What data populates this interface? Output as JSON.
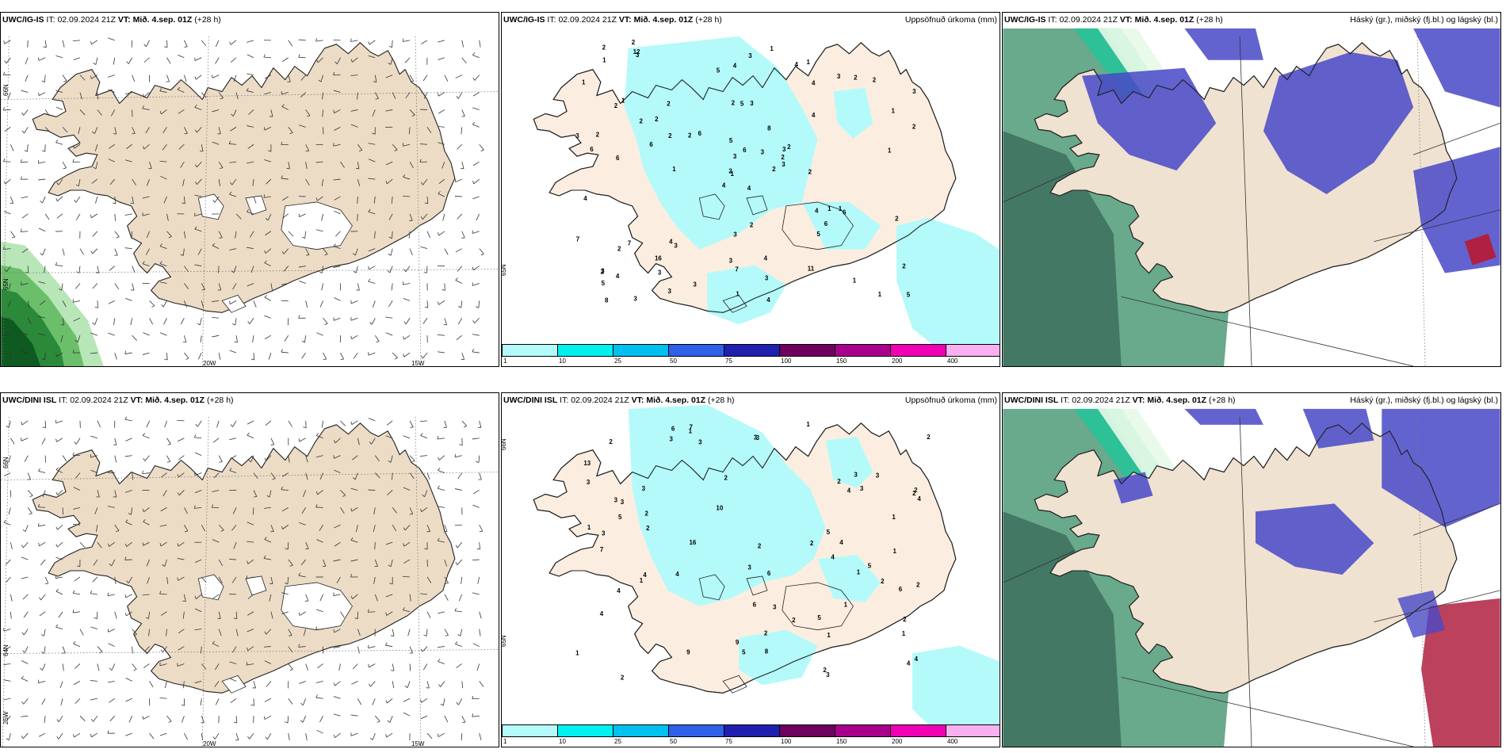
{
  "panels": [
    {
      "id": "ig-wind",
      "model": "UWC/IG-IS",
      "it_label": "IT:",
      "it": "02.09.2024 21Z",
      "vt_label": "VT:",
      "vt": "Mið. 4.sep. 01Z",
      "lead": "(+28 h)",
      "right_title": "",
      "lat_labels": [
        "66N",
        "65N",
        "64N"
      ],
      "lon_labels": [
        "20W",
        "15W",
        "25W"
      ]
    },
    {
      "id": "ig-precip",
      "model": "UWC/IG-IS",
      "it_label": "IT:",
      "it": "02.09.2024 21Z",
      "vt_label": "VT:",
      "vt": "Mið. 4.sep. 01Z",
      "lead": "(+28 h)",
      "right_title": "Uppsöfnuð úrkoma (mm)",
      "lat_labels": [
        "65N"
      ],
      "lon_labels": []
    },
    {
      "id": "ig-cloud",
      "model": "UWC/IG-IS",
      "it_label": "IT:",
      "it": "02.09.2024 21Z",
      "vt_label": "VT:",
      "vt": "Mið. 4.sep. 01Z",
      "lead": "(+28 h)",
      "right_title": "Háský (gr.), miðský (fj.bl.) og lágský (bl.)",
      "lat_labels": [],
      "lon_labels": []
    },
    {
      "id": "dini-wind",
      "model": "UWC/DINI ISL",
      "it_label": "IT:",
      "it": "02.09.2024 21Z",
      "vt_label": "VT:",
      "vt": "Mið. 4.sep. 01Z",
      "lead": "(+28 h)",
      "right_title": "",
      "lat_labels": [
        "66N",
        "64N",
        "25W"
      ],
      "lon_labels": [
        "20W",
        "15W"
      ]
    },
    {
      "id": "dini-precip",
      "model": "UWC/DINI ISL",
      "it_label": "IT:",
      "it": "02.09.2024 21Z",
      "vt_label": "VT:",
      "vt": "Mið. 4.sep. 01Z",
      "lead": "(+28 h)",
      "right_title": "Uppsöfnuð úrkoma (mm)",
      "lat_labels": [
        "66N",
        "65N"
      ],
      "lon_labels": []
    },
    {
      "id": "dini-cloud",
      "model": "UWC/DINI ISL",
      "it_label": "IT:",
      "it": "02.09.2024 21Z",
      "vt_label": "VT:",
      "vt": "Mið. 4.sep. 01Z",
      "lead": "(+28 h)",
      "right_title": "Háský (gr.), miðský (fj.bl.) og lágský (bl.)",
      "lat_labels": [],
      "lon_labels": []
    }
  ],
  "colorbar": {
    "ticks": [
      "1",
      "10",
      "25",
      "50",
      "75",
      "100",
      "150",
      "200",
      "400"
    ],
    "colors": [
      "#b4fafa",
      "#00f0f0",
      "#00c0f0",
      "#2f60e8",
      "#2020b0",
      "#6e0060",
      "#a8008c",
      "#f000b4",
      "#f8b0f0"
    ]
  },
  "precip_values_ig": [
    "4",
    "2",
    "1",
    "3",
    "3",
    "3",
    "1",
    "3",
    "4",
    "2",
    "3",
    "5",
    "6",
    "3",
    "4",
    "4",
    "3",
    "2",
    "8",
    "7",
    "6",
    "5",
    "3",
    "5",
    "2",
    "6",
    "1",
    "4",
    "6",
    "4",
    "2",
    "2",
    "3",
    "3",
    "2",
    "3",
    "4",
    "1",
    "2",
    "1",
    "1",
    "2",
    "6",
    "5",
    "3",
    "3",
    "2",
    "8",
    "7",
    "3",
    "2",
    "1",
    "1",
    "6",
    "11",
    "16",
    "12",
    "2",
    "4",
    "2",
    "3",
    "1",
    "2",
    "2",
    "2",
    "2",
    "4",
    "5",
    "6",
    "7",
    "3",
    "3",
    "1",
    "2",
    "2",
    "1",
    "2",
    "4",
    "5",
    "3",
    "3",
    "4",
    "2",
    "2",
    "1",
    "1",
    "2",
    "1",
    "4"
  ],
  "precip_values_dini": [
    "2",
    "2",
    "3",
    "1",
    "2",
    "2",
    "4",
    "4",
    "6",
    "5",
    "3",
    "5",
    "4",
    "3",
    "2",
    "5",
    "4",
    "3",
    "4",
    "3",
    "3",
    "2",
    "6",
    "4",
    "2",
    "2",
    "7",
    "9",
    "3",
    "1",
    "2",
    "3",
    "2",
    "3",
    "4",
    "1",
    "2",
    "4",
    "1",
    "3",
    "4",
    "8",
    "2",
    "10",
    "3",
    "5",
    "6",
    "16",
    "7",
    "13",
    "1",
    "1",
    "2",
    "2",
    "2",
    "3",
    "4",
    "1",
    "1",
    "9",
    "2",
    "6",
    "3",
    "1",
    "1",
    "2",
    "3",
    "5",
    "3",
    "1"
  ],
  "cloud_legend_colors": {
    "high": "#2a8a5a",
    "mid": "#4848c8",
    "low": "#b02040",
    "land": "#f0e2d0"
  }
}
